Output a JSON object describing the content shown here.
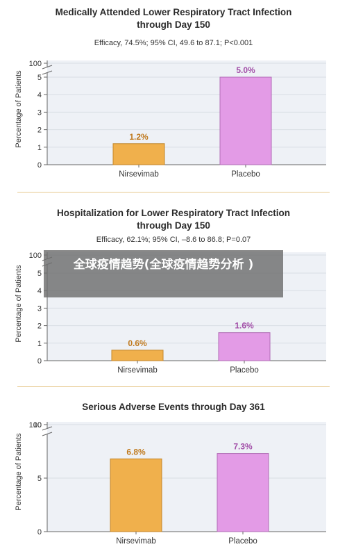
{
  "watermark": {
    "text": "全球疫情趋势(全球疫情趋势分析 )"
  },
  "colors": {
    "nirsevimab": "#f0b04c",
    "placebo": "#e39be6",
    "grid": "#d8dde4",
    "bg": "#eef1f6"
  },
  "chart_data": [
    {
      "type": "bar",
      "title_lines": [
        "Medically Attended Lower Respiratory Tract Infection",
        "through Day 150"
      ],
      "subtitle": "Efficacy, 74.5%; 95% CI, 49.6 to 87.1; P<0.001",
      "ylabel": "Percentage of Patients",
      "categories": [
        "Nirsevimab",
        "Placebo"
      ],
      "values": [
        1.2,
        5.0
      ],
      "value_labels": [
        "1.2%",
        "5.0%"
      ],
      "ylim": [
        0,
        5
      ],
      "yticks": [
        "0",
        "1",
        "2",
        "3",
        "4",
        "5"
      ],
      "ybreak_label": "100",
      "grid": true
    },
    {
      "type": "bar",
      "title_lines": [
        "Hospitalization for Lower Respiratory Tract Infection",
        "through Day 150"
      ],
      "subtitle": "Efficacy, 62.1%; 95% CI, –8.6 to 86.8; P=0.07",
      "ylabel": "Percentage of Patients",
      "categories": [
        "Nirsevimab",
        "Placebo"
      ],
      "values": [
        0.6,
        1.6
      ],
      "value_labels": [
        "0.6%",
        "1.6%"
      ],
      "ylim": [
        0,
        5
      ],
      "yticks": [
        "0",
        "1",
        "2",
        "3",
        "4",
        "5"
      ],
      "ybreak_label": "100",
      "grid": true
    },
    {
      "type": "bar",
      "title_lines": [
        "Serious Adverse Events through Day 361"
      ],
      "subtitle": "",
      "ylabel": "Percentage of Patients",
      "categories": [
        "Nirsevimab",
        "Placebo"
      ],
      "values": [
        6.8,
        7.3
      ],
      "value_labels": [
        "6.8%",
        "7.3%"
      ],
      "ylim": [
        0,
        10
      ],
      "yticks": [
        "0",
        "5",
        "10"
      ],
      "ybreak_label": "100",
      "grid": true
    }
  ]
}
